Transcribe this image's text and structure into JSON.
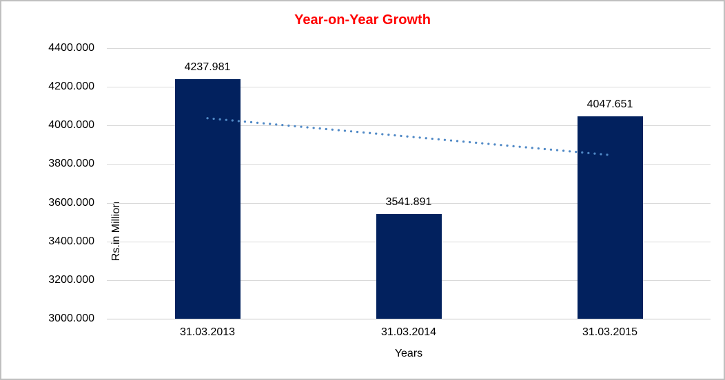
{
  "window": {
    "title": "Year-on-Year Growth chart"
  },
  "chart_data": {
    "type": "bar",
    "title": "Year-on-Year Growth",
    "title_color": "#ff0000",
    "categories": [
      "31.03.2013",
      "31.03.2014",
      "31.03.2015"
    ],
    "values": [
      4237.981,
      3541.891,
      4047.651
    ],
    "value_labels": [
      "4237.981",
      "3541.891",
      "4047.651"
    ],
    "xlabel": "Years",
    "ylabel": "Rs.in Million",
    "ylim": [
      3000,
      4400
    ],
    "ytick_step": 200,
    "ytick_labels": [
      "4400.000",
      "4200.000",
      "4000.000",
      "3800.000",
      "3600.000",
      "3400.000",
      "3200.000",
      "3000.000"
    ],
    "grid": true,
    "legend": "none",
    "bar_color": "#02215e",
    "gridline_color": "#d9d9d9",
    "trendline": {
      "style": "dotted",
      "color": "#5089c6",
      "start_value": 4037.7,
      "end_value": 3847.3
    }
  }
}
